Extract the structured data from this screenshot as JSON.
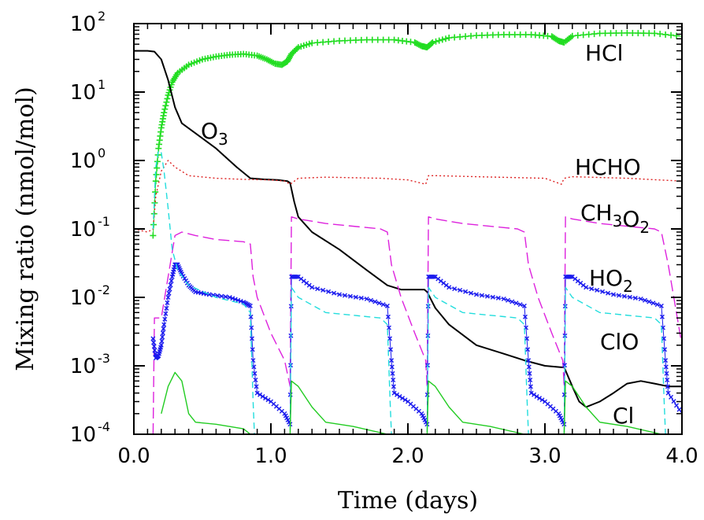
{
  "chart_data": {
    "type": "line",
    "xlabel": "Time (days)",
    "ylabel": "Mixing ratio (nmol/mol)",
    "y_scale": "log",
    "xlim": [
      0.0,
      4.0
    ],
    "ylim": [
      0.0001,
      100
    ],
    "x_ticks": [
      "0.0",
      "1.0",
      "2.0",
      "3.0",
      "4.0"
    ],
    "y_ticks": [
      {
        "base": "10",
        "exp": "-4"
      },
      {
        "base": "10",
        "exp": "-3"
      },
      {
        "base": "10",
        "exp": "-2"
      },
      {
        "base": "10",
        "exp": "-1"
      },
      {
        "base": "10",
        "exp": "0"
      },
      {
        "base": "10",
        "exp": "1"
      },
      {
        "base": "10",
        "exp": "2"
      }
    ],
    "grid": false,
    "series": [
      {
        "name": "HCl",
        "color": "#22dd22",
        "style": "plus-markers",
        "x": [
          0.14,
          0.16,
          0.18,
          0.2,
          0.22,
          0.25,
          0.28,
          0.32,
          0.4,
          0.5,
          0.6,
          0.7,
          0.8,
          0.9,
          0.97,
          1.03,
          1.08,
          1.12,
          1.15,
          1.2,
          1.3,
          1.5,
          1.7,
          1.9,
          2.05,
          2.1,
          2.14,
          2.18,
          2.3,
          2.5,
          2.7,
          2.9,
          3.05,
          3.1,
          3.14,
          3.2,
          3.4,
          3.6,
          3.8,
          4.0
        ],
        "y": [
          0.08,
          0.5,
          1.5,
          3,
          5,
          9,
          14,
          19,
          25,
          30,
          33,
          35,
          36,
          34,
          30,
          26,
          25,
          28,
          36,
          45,
          52,
          56,
          58,
          58,
          53,
          47,
          45,
          53,
          62,
          67,
          69,
          69,
          65,
          56,
          53,
          66,
          72,
          73,
          72,
          65
        ]
      },
      {
        "name": "O3",
        "color": "#000000",
        "style": "solid",
        "x": [
          0,
          0.1,
          0.15,
          0.2,
          0.25,
          0.3,
          0.35,
          0.45,
          0.6,
          0.75,
          0.85,
          0.95,
          1.05,
          1.12,
          1.14,
          1.17,
          1.2,
          1.3,
          1.5,
          1.7,
          1.85,
          1.95,
          2.05,
          2.12,
          2.14,
          2.2,
          2.3,
          2.5,
          2.7,
          2.85,
          3.0,
          3.12,
          3.14,
          3.2,
          3.25,
          3.3,
          3.4,
          3.5,
          3.6,
          3.7,
          3.8,
          3.9,
          4.0
        ],
        "y": [
          40,
          40,
          39,
          30,
          15,
          6,
          3.5,
          2.5,
          1.5,
          0.8,
          0.55,
          0.53,
          0.52,
          0.5,
          0.47,
          0.25,
          0.15,
          0.09,
          0.05,
          0.025,
          0.015,
          0.013,
          0.013,
          0.013,
          0.012,
          0.007,
          0.004,
          0.002,
          0.0015,
          0.0012,
          0.001,
          0.00095,
          0.00095,
          0.0005,
          0.0003,
          0.00025,
          0.0003,
          0.0004,
          0.00055,
          0.0006,
          0.00055,
          0.0005,
          0.0005
        ]
      },
      {
        "name": "HCHO",
        "color": "#dd2222",
        "style": "dotted",
        "x": [
          0,
          0.1,
          0.14,
          0.16,
          0.2,
          0.25,
          0.3,
          0.4,
          0.6,
          0.8,
          1.0,
          1.1,
          1.14,
          1.2,
          1.4,
          1.8,
          2.0,
          2.13,
          2.15,
          2.2,
          2.5,
          3.0,
          3.12,
          3.14,
          3.2,
          3.6,
          4.0
        ],
        "y": [
          0.1,
          0.09,
          0.1,
          0.3,
          0.7,
          1.0,
          0.8,
          0.6,
          0.55,
          0.53,
          0.52,
          0.5,
          0.45,
          0.55,
          0.57,
          0.55,
          0.52,
          0.45,
          0.6,
          0.6,
          0.58,
          0.55,
          0.45,
          0.55,
          0.58,
          0.55,
          0.5
        ]
      },
      {
        "name": "CH3O2",
        "color": "#dd22dd",
        "style": "long-dash",
        "x": [
          0.14,
          0.15,
          0.2,
          0.25,
          0.3,
          0.35,
          0.45,
          0.6,
          0.8,
          0.85,
          0.87,
          0.9,
          1.0,
          1.1,
          1.14,
          1.15,
          1.2,
          1.4,
          1.8,
          1.85,
          1.88,
          1.95,
          2.05,
          2.13,
          2.14,
          2.15,
          2.2,
          2.4,
          2.8,
          2.85,
          2.88,
          2.95,
          3.05,
          3.13,
          3.14,
          3.15,
          3.2,
          3.4,
          3.8,
          3.85,
          3.9,
          4.0
        ],
        "y": [
          0.0001,
          0.005,
          0.005,
          0.02,
          0.08,
          0.09,
          0.08,
          0.07,
          0.065,
          0.06,
          0.02,
          0.01,
          0.003,
          0.0012,
          0.0005,
          0.15,
          0.14,
          0.12,
          0.1,
          0.09,
          0.03,
          0.01,
          0.003,
          0.0012,
          0.0005,
          0.15,
          0.14,
          0.12,
          0.1,
          0.09,
          0.03,
          0.01,
          0.003,
          0.0012,
          0.0005,
          0.15,
          0.14,
          0.12,
          0.1,
          0.09,
          0.03,
          0.002
        ]
      },
      {
        "name": "HO2",
        "color": "#1a1aee",
        "style": "x-markers",
        "x": [
          0.14,
          0.16,
          0.18,
          0.2,
          0.22,
          0.25,
          0.28,
          0.3,
          0.32,
          0.35,
          0.4,
          0.45,
          0.55,
          0.7,
          0.8,
          0.85,
          0.87,
          0.9,
          1.0,
          1.1,
          1.14,
          1.15,
          1.2,
          1.3,
          1.5,
          1.7,
          1.85,
          1.88,
          1.9,
          2.0,
          2.1,
          2.14,
          2.15,
          2.2,
          2.3,
          2.5,
          2.7,
          2.85,
          2.88,
          2.9,
          3.0,
          3.1,
          3.14,
          3.15,
          3.2,
          3.3,
          3.5,
          3.7,
          3.85,
          3.88,
          3.9,
          4.0
        ],
        "y": [
          0.0025,
          0.0013,
          0.0014,
          0.002,
          0.004,
          0.01,
          0.02,
          0.03,
          0.03,
          0.022,
          0.015,
          0.012,
          0.011,
          0.01,
          0.0085,
          0.0075,
          0.0012,
          0.0004,
          0.0003,
          0.0002,
          0.00014,
          0.02,
          0.02,
          0.014,
          0.011,
          0.0095,
          0.0075,
          0.0012,
          0.0004,
          0.0003,
          0.0002,
          0.00014,
          0.02,
          0.02,
          0.014,
          0.011,
          0.0095,
          0.0075,
          0.0012,
          0.0004,
          0.0003,
          0.0002,
          0.00014,
          0.02,
          0.02,
          0.014,
          0.011,
          0.0095,
          0.0075,
          0.0012,
          0.0004,
          0.0002
        ]
      },
      {
        "name": "ClO",
        "color": "#22dddd",
        "style": "dashed",
        "x": [
          0.14,
          0.16,
          0.18,
          0.2,
          0.22,
          0.25,
          0.28,
          0.32,
          0.4,
          0.6,
          0.8,
          0.85,
          0.87,
          0.88,
          1.14,
          1.15,
          1.2,
          1.4,
          1.8,
          1.85,
          1.87,
          1.88,
          2.14,
          2.15,
          2.2,
          2.4,
          2.8,
          2.85,
          2.87,
          2.88,
          3.14,
          3.15,
          3.2,
          3.4,
          3.8,
          3.85,
          3.87,
          3.88
        ],
        "y": [
          0.1,
          0.8,
          1.4,
          1.3,
          0.7,
          0.2,
          0.05,
          0.025,
          0.015,
          0.01,
          0.008,
          0.006,
          0.0003,
          0.0001,
          0.0001,
          0.014,
          0.01,
          0.006,
          0.005,
          0.004,
          0.0003,
          0.0001,
          0.0001,
          0.014,
          0.01,
          0.006,
          0.005,
          0.004,
          0.0003,
          0.0001,
          0.0001,
          0.014,
          0.01,
          0.006,
          0.005,
          0.004,
          0.0003,
          0.0001
        ]
      },
      {
        "name": "Cl",
        "color": "#22cc22",
        "style": "solid-thin",
        "x": [
          0.2,
          0.25,
          0.3,
          0.35,
          0.4,
          0.45,
          0.6,
          0.8,
          0.85,
          0.88,
          1.14,
          1.15,
          1.2,
          1.3,
          1.4,
          1.6,
          1.85,
          1.88,
          2.14,
          2.15,
          2.2,
          2.3,
          2.4,
          2.6,
          2.85,
          2.88,
          3.14,
          3.15,
          3.2,
          3.3,
          3.4,
          3.6,
          3.85,
          3.88
        ],
        "y": [
          0.0002,
          0.0005,
          0.0008,
          0.0006,
          0.0002,
          0.00015,
          0.00014,
          0.00012,
          0.0001,
          0.0001,
          0.0001,
          0.0006,
          0.0005,
          0.00025,
          0.00015,
          0.00013,
          0.0001,
          0.0001,
          0.0001,
          0.0006,
          0.0005,
          0.00025,
          0.00015,
          0.00013,
          0.0001,
          0.0001,
          0.0001,
          0.0006,
          0.0005,
          0.00025,
          0.00015,
          0.00013,
          0.0001,
          0.0001
        ]
      }
    ],
    "annotations": [
      {
        "id": "hcl",
        "text": "HCl",
        "sub": "",
        "rest": ""
      },
      {
        "id": "o3",
        "text": "O",
        "sub": "3",
        "rest": ""
      },
      {
        "id": "hcho",
        "text": "HCHO",
        "sub": "",
        "rest": ""
      },
      {
        "id": "ch3o2",
        "text": "CH",
        "sub": "3",
        "rest": "O",
        "sub2": "2"
      },
      {
        "id": "ho2",
        "text": "HO",
        "sub": "2",
        "rest": ""
      },
      {
        "id": "clo",
        "text": "ClO",
        "sub": "",
        "rest": ""
      },
      {
        "id": "cl",
        "text": "Cl",
        "sub": "",
        "rest": ""
      }
    ]
  }
}
